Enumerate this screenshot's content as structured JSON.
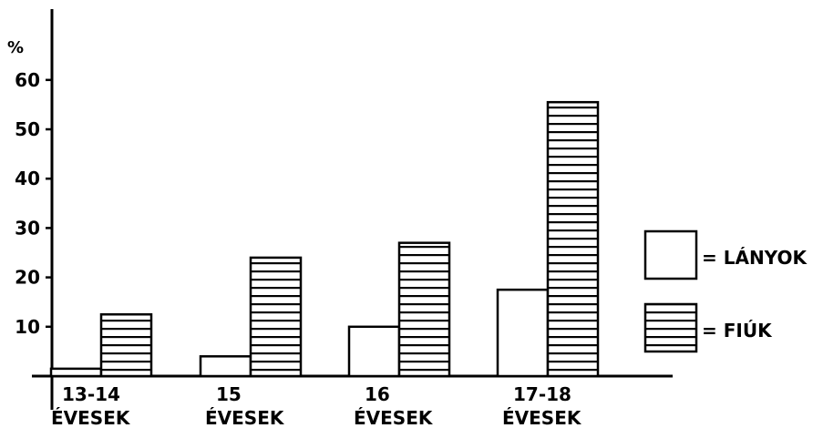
{
  "chart_data": {
    "type": "bar",
    "ylabel": "%",
    "ylim": [
      0,
      65
    ],
    "yticks": [
      10,
      20,
      30,
      40,
      50,
      60
    ],
    "grid": false,
    "legend_position": "right",
    "categories": [
      {
        "line1": "13-14",
        "line2": "ÉVESEK"
      },
      {
        "line1": "15",
        "line2": "ÉVESEK"
      },
      {
        "line1": "16",
        "line2": "ÉVESEK"
      },
      {
        "line1": "17-18",
        "line2": "ÉVESEK"
      }
    ],
    "series": [
      {
        "name": "= LÁNYOK",
        "values": [
          1.5,
          4,
          10,
          17.5
        ],
        "fill": "plain"
      },
      {
        "name": "= FIÚK",
        "values": [
          12.5,
          24,
          27,
          55.5
        ],
        "fill": "horizontal-stripes"
      }
    ],
    "colors": {
      "ink": "#000000",
      "paper": "#ffffff"
    }
  }
}
